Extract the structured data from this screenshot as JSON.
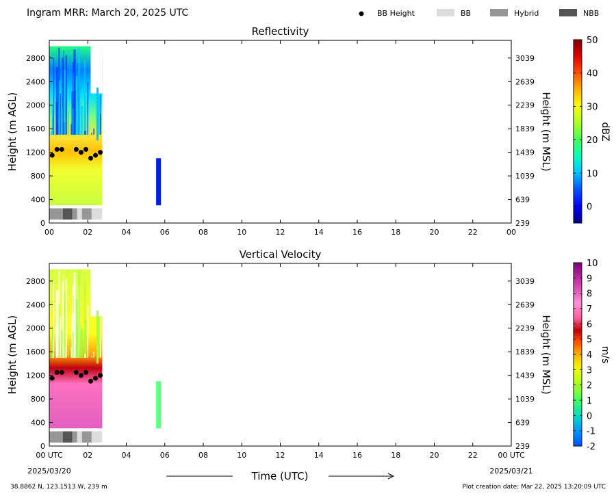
{
  "header": {
    "title": "Ingram MRR:  March 20, 2025 UTC",
    "legend": [
      {
        "label": "BB Height",
        "marker": "dot",
        "color": "#000000"
      },
      {
        "label": "BB",
        "marker": "box",
        "color": "#dcdcdc"
      },
      {
        "label": "Hybrid",
        "marker": "box",
        "color": "#969696"
      },
      {
        "label": "NBB",
        "marker": "box",
        "color": "#555555"
      }
    ]
  },
  "footer": {
    "location": "38.8862 N, 123.1513 W, 239 m",
    "creation": "Plot creation date: Mar 22, 2025 13:20:09 UTC",
    "xlabel": "Time (UTC)",
    "start_date": "2025/03/20",
    "end_date": "2025/03/21"
  },
  "chart_data": [
    {
      "type": "heatmap",
      "title": "Reflectivity",
      "xlabel": "Time (UTC)",
      "ylabel": "Height (m AGL)",
      "ylabel_right": "Height (m MSL)",
      "x_ticks": [
        "00",
        "02",
        "04",
        "06",
        "08",
        "10",
        "12",
        "14",
        "16",
        "18",
        "20",
        "22",
        "00"
      ],
      "xlim": [
        0,
        24
      ],
      "ylim": [
        0,
        3100
      ],
      "y_ticks": [
        0,
        400,
        800,
        1200,
        1600,
        2000,
        2400,
        2800
      ],
      "y_ticks_right": [
        239,
        639,
        1039,
        1439,
        1839,
        2239,
        2639,
        3039
      ],
      "colorbar": {
        "label": "dBZ",
        "min": -5,
        "max": 50,
        "ticks": [
          0,
          10,
          20,
          30,
          40,
          50
        ]
      },
      "bb_height": {
        "x": [
          0.15,
          0.4,
          0.65,
          1.4,
          1.65,
          1.9,
          2.15,
          2.4,
          2.65
        ],
        "y": [
          1150,
          1250,
          1250,
          1250,
          1200,
          1250,
          1100,
          1150,
          1200
        ]
      },
      "classification": [
        {
          "start": 0.0,
          "end": 0.7,
          "class": "Hybrid"
        },
        {
          "start": 0.7,
          "end": 1.2,
          "class": "NBB"
        },
        {
          "start": 1.2,
          "end": 1.45,
          "class": "Hybrid"
        },
        {
          "start": 1.45,
          "end": 1.7,
          "class": "BB"
        },
        {
          "start": 1.7,
          "end": 2.2,
          "class": "Hybrid"
        },
        {
          "start": 2.2,
          "end": 2.75,
          "class": "BB"
        }
      ]
    },
    {
      "type": "heatmap",
      "title": "Vertical Velocity",
      "xlabel": "Time (UTC)",
      "ylabel": "Height (m AGL)",
      "ylabel_right": "Height (m MSL)",
      "x_ticks": [
        "00 UTC",
        "02",
        "04",
        "06",
        "08",
        "10",
        "12",
        "14",
        "16",
        "18",
        "20",
        "22",
        "00 UTC"
      ],
      "xlim": [
        0,
        24
      ],
      "ylim": [
        0,
        3100
      ],
      "y_ticks": [
        0,
        400,
        800,
        1200,
        1600,
        2000,
        2400,
        2800
      ],
      "y_ticks_right": [
        239,
        639,
        1039,
        1439,
        1839,
        2239,
        2639,
        3039
      ],
      "colorbar": {
        "label": "m/s",
        "min": -2,
        "max": 10,
        "ticks": [
          -2,
          -1,
          0,
          1,
          2,
          3,
          4,
          5,
          6,
          7,
          8,
          9,
          10
        ]
      },
      "bb_height": {
        "x": [
          0.15,
          0.4,
          0.65,
          1.4,
          1.65,
          1.9,
          2.15,
          2.4,
          2.65
        ],
        "y": [
          1150,
          1250,
          1250,
          1250,
          1200,
          1250,
          1100,
          1150,
          1200
        ]
      },
      "classification": [
        {
          "start": 0.0,
          "end": 0.7,
          "class": "Hybrid"
        },
        {
          "start": 0.7,
          "end": 1.2,
          "class": "NBB"
        },
        {
          "start": 1.2,
          "end": 1.45,
          "class": "Hybrid"
        },
        {
          "start": 1.45,
          "end": 1.7,
          "class": "BB"
        },
        {
          "start": 1.7,
          "end": 2.2,
          "class": "Hybrid"
        },
        {
          "start": 2.2,
          "end": 2.75,
          "class": "BB"
        }
      ]
    }
  ]
}
